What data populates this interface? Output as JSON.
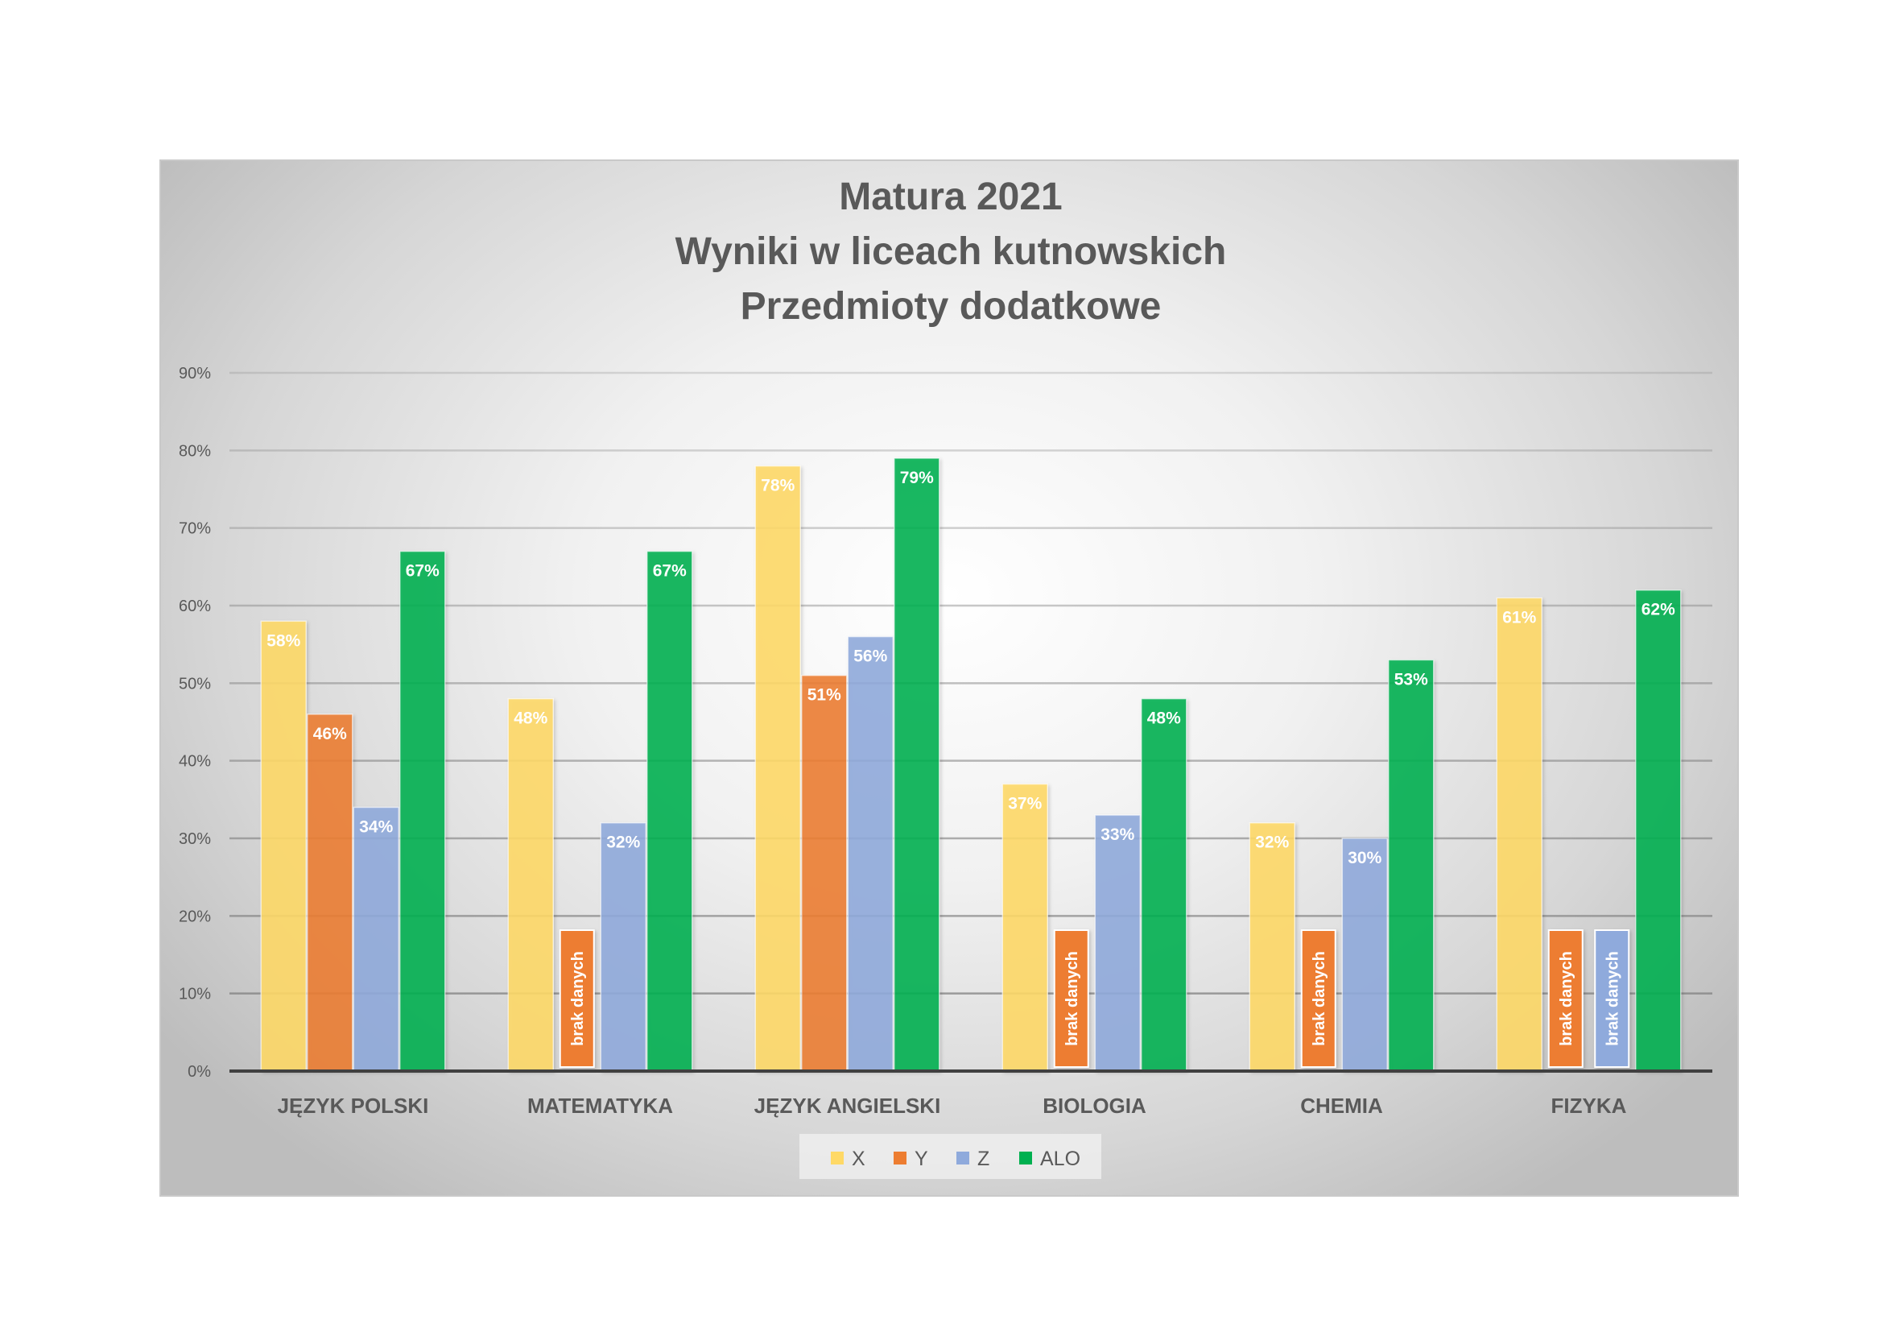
{
  "chart_data": {
    "type": "bar",
    "title": [
      "Matura 2021",
      "Wyniki w liceach kutnowskich",
      "Przedmioty dodatkowe"
    ],
    "xlabel": "",
    "ylabel": "",
    "ylim": [
      0,
      90
    ],
    "yticks": [
      "0%",
      "10%",
      "20%",
      "30%",
      "40%",
      "50%",
      "60%",
      "70%",
      "80%",
      "90%"
    ],
    "grid": true,
    "legend_position": "bottom",
    "categories": [
      "JĘZYK POLSKI",
      "MATEMATYKA",
      "JĘZYK ANGIELSKI",
      "BIOLOGIA",
      "CHEMIA",
      "FIZYKA"
    ],
    "missing_label": "brak danych",
    "series": [
      {
        "name": "X",
        "color": "#FFD966",
        "values": [
          58,
          48,
          78,
          37,
          32,
          61
        ],
        "labels": [
          "58%",
          "48%",
          "78%",
          "37%",
          "32%",
          "61%"
        ]
      },
      {
        "name": "Y",
        "color": "#ED7D31",
        "values": [
          46,
          null,
          51,
          null,
          null,
          null
        ],
        "labels": [
          "46%",
          "brak danych",
          "51%",
          "brak danych",
          "brak danych",
          "brak danych"
        ]
      },
      {
        "name": "Z",
        "color": "#8FAADC",
        "values": [
          34,
          32,
          56,
          33,
          30,
          null
        ],
        "labels": [
          "34%",
          "32%",
          "56%",
          "33%",
          "30%",
          "brak danych"
        ]
      },
      {
        "name": "ALO",
        "color": "#00B050",
        "values": [
          67,
          67,
          79,
          48,
          53,
          62
        ],
        "labels": [
          "67%",
          "67%",
          "79%",
          "48%",
          "53%",
          "62%"
        ]
      }
    ]
  }
}
